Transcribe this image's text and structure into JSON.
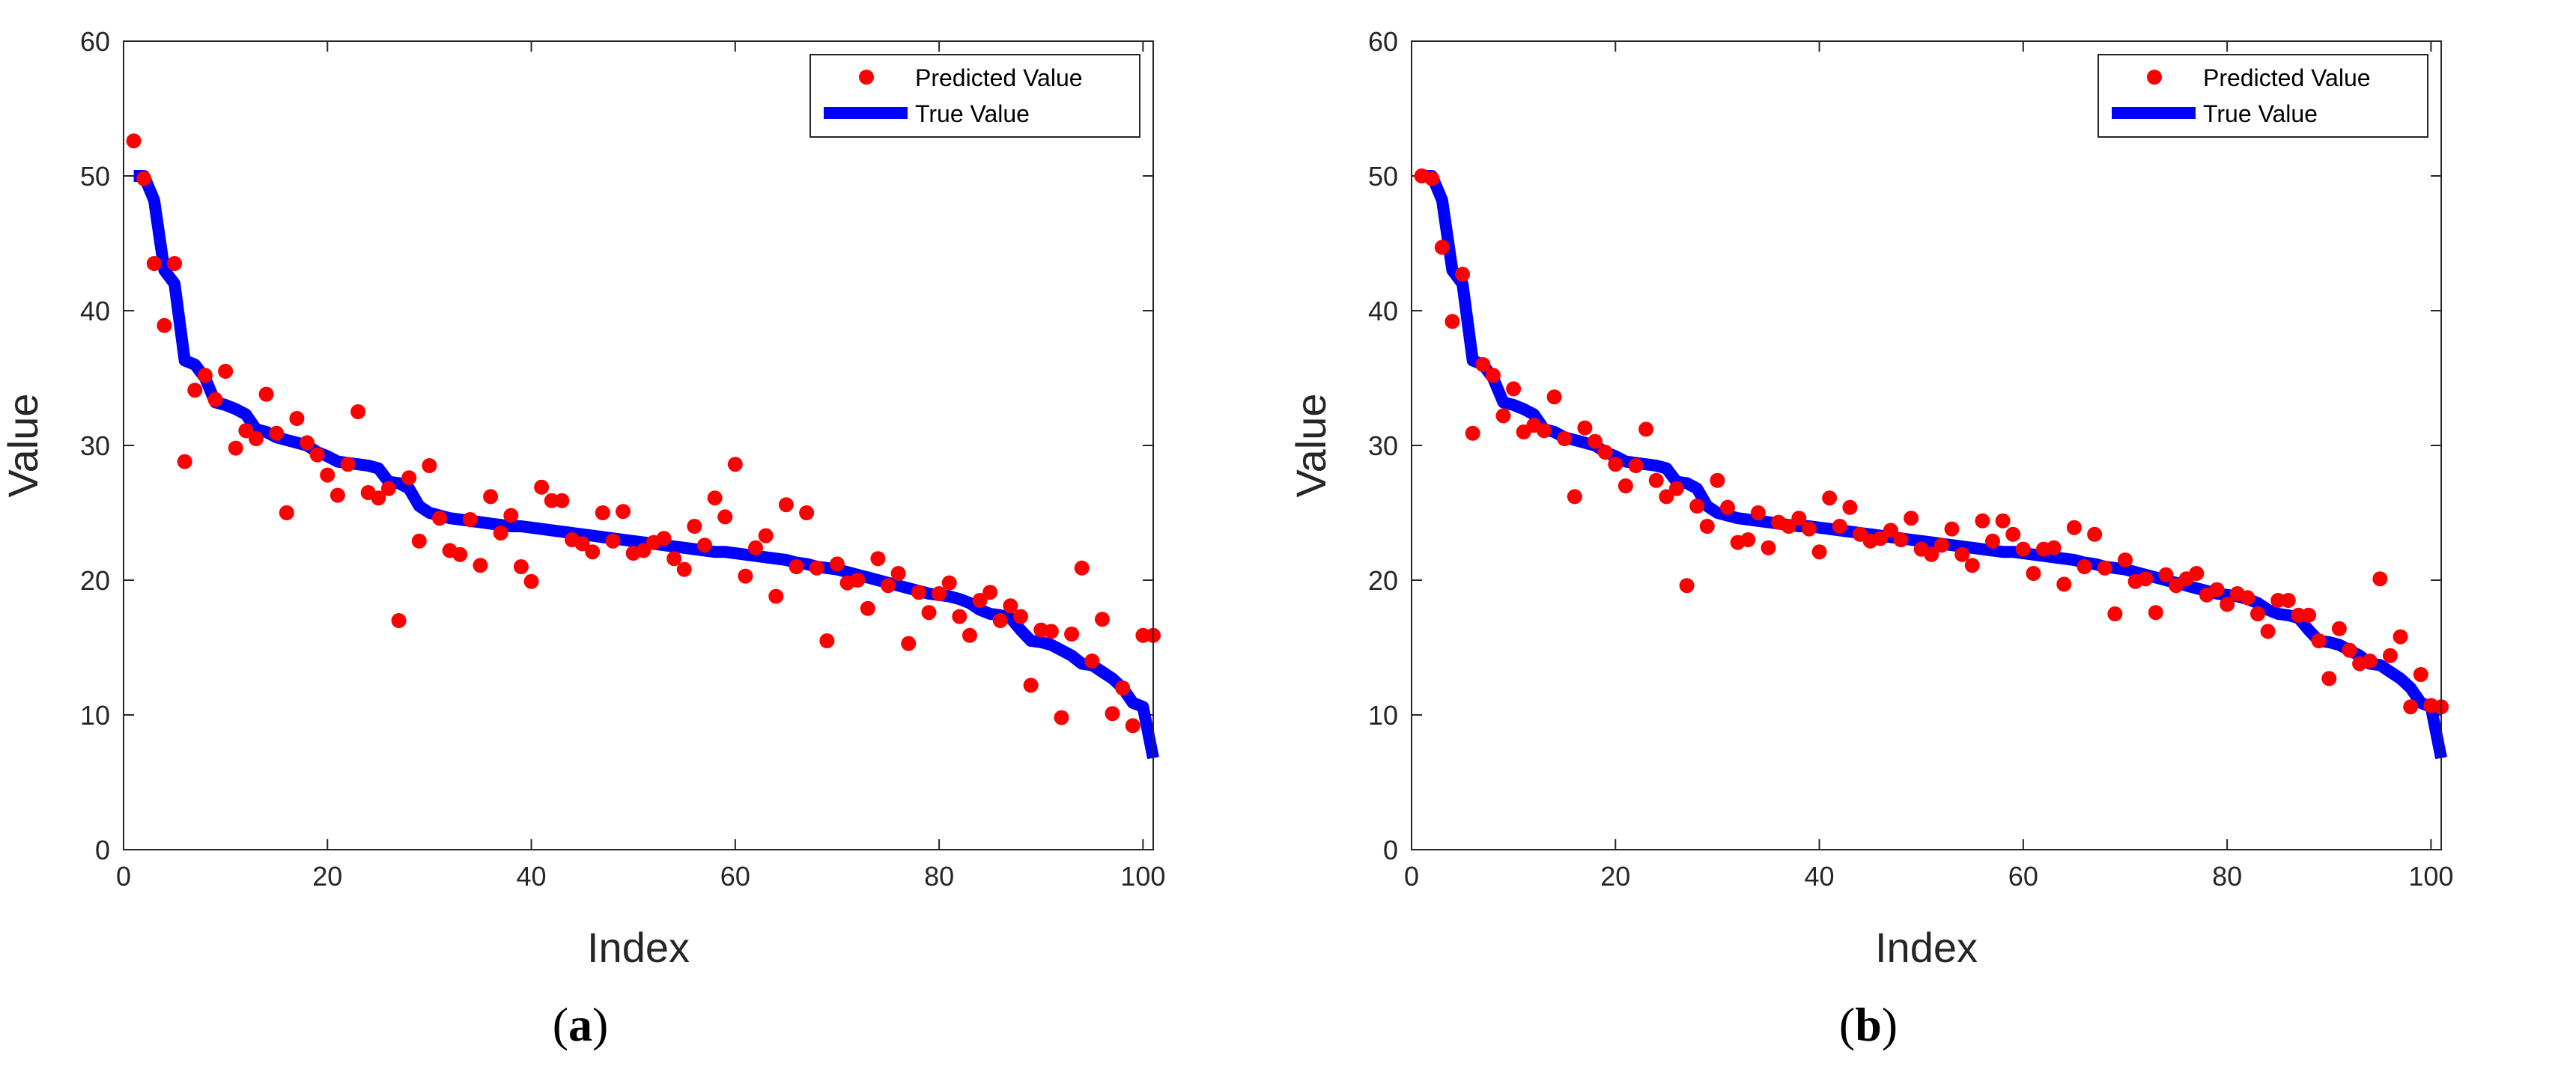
{
  "chart_data": [
    {
      "type": "scatter",
      "panel_caption": {
        "open": "(",
        "letter": "a",
        "close": ")"
      },
      "xlabel": "Index",
      "ylabel": "Value",
      "xlim": [
        0,
        101
      ],
      "ylim": [
        0,
        60
      ],
      "xticks": [
        "0",
        "20",
        "40",
        "60",
        "80",
        "100"
      ],
      "yticks": [
        "0",
        "10",
        "20",
        "30",
        "40",
        "50",
        "60"
      ],
      "legend": {
        "position": "top-right",
        "entries": [
          "Predicted Value",
          "True Value"
        ]
      },
      "colors": {
        "predicted": "#ff0000",
        "true": "#0000ff"
      },
      "series": [
        {
          "name": "Predicted Value",
          "style": "points",
          "x": [
            1,
            2,
            3,
            4,
            5,
            6,
            7,
            8,
            9,
            10,
            11,
            12,
            13,
            14,
            15,
            16,
            17,
            18,
            19,
            20,
            21,
            22,
            23,
            24,
            25,
            26,
            27,
            28,
            29,
            30,
            31,
            32,
            33,
            34,
            35,
            36,
            37,
            38,
            39,
            40,
            41,
            42,
            43,
            44,
            45,
            46,
            47,
            48,
            49,
            50,
            51,
            52,
            53,
            54,
            55,
            56,
            57,
            58,
            59,
            60,
            61,
            62,
            63,
            64,
            65,
            66,
            67,
            68,
            69,
            70,
            71,
            72,
            73,
            74,
            75,
            76,
            77,
            78,
            79,
            80,
            81,
            82,
            83,
            84,
            85,
            86,
            87,
            88,
            89,
            90,
            91,
            92,
            93,
            94,
            95,
            96,
            97,
            98,
            99,
            100,
            101
          ],
          "y": [
            52.6,
            49.8,
            43.5,
            38.9,
            43.5,
            28.8,
            34.1,
            35.2,
            33.4,
            35.5,
            29.8,
            31.1,
            30.5,
            33.8,
            30.9,
            25.0,
            32.0,
            30.2,
            29.3,
            27.8,
            26.3,
            28.6,
            32.5,
            26.5,
            26.1,
            26.8,
            17.0,
            27.6,
            22.9,
            28.5,
            24.6,
            22.2,
            21.9,
            24.5,
            21.1,
            26.2,
            23.5,
            24.8,
            21.0,
            19.9,
            26.9,
            25.9,
            25.9,
            23.0,
            22.7,
            22.1,
            25.0,
            22.9,
            25.1,
            22.0,
            22.2,
            22.8,
            23.1,
            21.6,
            20.8,
            24.0,
            22.6,
            26.1,
            24.7,
            28.6,
            20.3,
            22.4,
            23.3,
            18.8,
            25.6,
            21.0,
            25.0,
            20.9,
            15.5,
            21.2,
            19.8,
            20.0,
            17.9,
            21.6,
            19.6,
            20.5,
            15.3,
            19.1,
            17.6,
            19.0,
            19.8,
            17.3,
            15.9,
            18.5,
            19.1,
            17.0,
            18.1,
            17.3,
            12.2,
            16.3,
            16.2,
            9.8,
            16.0,
            20.9,
            14.0,
            17.1,
            10.1,
            12.0,
            9.2,
            15.9,
            15.9
          ]
        },
        {
          "name": "True Value",
          "style": "line",
          "x": [
            1,
            2,
            3,
            4,
            5,
            6,
            7,
            8,
            9,
            10,
            11,
            12,
            13,
            14,
            15,
            16,
            17,
            18,
            19,
            20,
            21,
            22,
            23,
            24,
            25,
            26,
            27,
            28,
            29,
            30,
            31,
            32,
            33,
            34,
            35,
            36,
            37,
            38,
            39,
            40,
            41,
            42,
            43,
            44,
            45,
            46,
            47,
            48,
            49,
            50,
            51,
            52,
            53,
            54,
            55,
            56,
            57,
            58,
            59,
            60,
            61,
            62,
            63,
            64,
            65,
            66,
            67,
            68,
            69,
            70,
            71,
            72,
            73,
            74,
            75,
            76,
            77,
            78,
            79,
            80,
            81,
            82,
            83,
            84,
            85,
            86,
            87,
            88,
            89,
            90,
            91,
            92,
            93,
            94,
            95,
            96,
            97,
            98,
            99,
            100,
            101
          ],
          "y": [
            50.0,
            50.0,
            48.2,
            43.0,
            42.0,
            36.3,
            36.0,
            35.0,
            33.2,
            33.0,
            32.7,
            32.3,
            31.2,
            31.0,
            30.6,
            30.4,
            30.2,
            30.0,
            29.5,
            29.2,
            28.8,
            28.7,
            28.6,
            28.5,
            28.3,
            27.3,
            27.2,
            26.8,
            25.5,
            25.0,
            24.8,
            24.6,
            24.5,
            24.4,
            24.3,
            24.2,
            24.1,
            24.0,
            24.0,
            23.9,
            23.8,
            23.7,
            23.6,
            23.5,
            23.4,
            23.3,
            23.2,
            23.1,
            23.0,
            22.9,
            22.8,
            22.7,
            22.6,
            22.5,
            22.4,
            22.3,
            22.2,
            22.1,
            22.1,
            22.0,
            21.9,
            21.8,
            21.7,
            21.6,
            21.5,
            21.3,
            21.2,
            21.0,
            20.9,
            20.8,
            20.6,
            20.4,
            20.2,
            20.0,
            19.8,
            19.6,
            19.4,
            19.2,
            19.0,
            18.9,
            18.8,
            18.6,
            18.3,
            17.8,
            17.5,
            17.4,
            17.2,
            16.3,
            15.5,
            15.4,
            15.2,
            14.8,
            14.4,
            13.8,
            13.7,
            13.2,
            12.7,
            12.0,
            10.9,
            10.6,
            6.8
          ]
        }
      ]
    },
    {
      "type": "scatter",
      "panel_caption": {
        "open": "(",
        "letter": "b",
        "close": ")"
      },
      "xlabel": "Index",
      "ylabel": "Value",
      "xlim": [
        0,
        101
      ],
      "ylim": [
        0,
        60
      ],
      "xticks": [
        "0",
        "20",
        "40",
        "60",
        "80",
        "100"
      ],
      "yticks": [
        "0",
        "10",
        "20",
        "30",
        "40",
        "50",
        "60"
      ],
      "legend": {
        "position": "top-right",
        "entries": [
          "Predicted Value",
          "True Value"
        ]
      },
      "colors": {
        "predicted": "#ff0000",
        "true": "#0000ff"
      },
      "series": [
        {
          "name": "Predicted Value",
          "style": "points",
          "x": [
            1,
            2,
            3,
            4,
            5,
            6,
            7,
            8,
            9,
            10,
            11,
            12,
            13,
            14,
            15,
            16,
            17,
            18,
            19,
            20,
            21,
            22,
            23,
            24,
            25,
            26,
            27,
            28,
            29,
            30,
            31,
            32,
            33,
            34,
            35,
            36,
            37,
            38,
            39,
            40,
            41,
            42,
            43,
            44,
            45,
            46,
            47,
            48,
            49,
            50,
            51,
            52,
            53,
            54,
            55,
            56,
            57,
            58,
            59,
            60,
            61,
            62,
            63,
            64,
            65,
            66,
            67,
            68,
            69,
            70,
            71,
            72,
            73,
            74,
            75,
            76,
            77,
            78,
            79,
            80,
            81,
            82,
            83,
            84,
            85,
            86,
            87,
            88,
            89,
            90,
            91,
            92,
            93,
            94,
            95,
            96,
            97,
            98,
            99,
            100,
            101
          ],
          "y": [
            50.0,
            49.8,
            44.7,
            39.2,
            42.7,
            30.9,
            36.0,
            35.2,
            32.2,
            34.2,
            31.0,
            31.5,
            31.1,
            33.6,
            30.5,
            26.2,
            31.3,
            30.3,
            29.5,
            28.6,
            27.0,
            28.5,
            31.2,
            27.4,
            26.2,
            26.8,
            19.6,
            25.5,
            24.0,
            27.4,
            25.4,
            22.8,
            23.0,
            25.0,
            22.4,
            24.3,
            24.0,
            24.6,
            23.8,
            22.1,
            26.1,
            24.0,
            25.4,
            23.4,
            22.9,
            23.1,
            23.7,
            23.0,
            24.6,
            22.3,
            21.9,
            22.6,
            23.8,
            21.9,
            21.1,
            24.4,
            22.9,
            24.4,
            23.4,
            22.3,
            20.5,
            22.3,
            22.4,
            19.7,
            23.9,
            21.0,
            23.4,
            20.9,
            17.5,
            21.5,
            19.9,
            20.1,
            17.6,
            20.4,
            19.6,
            20.1,
            20.5,
            18.9,
            19.3,
            18.2,
            19.0,
            18.7,
            17.5,
            16.2,
            18.5,
            18.5,
            17.4,
            17.4,
            15.5,
            12.7,
            16.4,
            14.8,
            13.8,
            14.0,
            20.1,
            14.4,
            15.8,
            10.6,
            13.0,
            10.7,
            10.6
          ]
        },
        {
          "name": "True Value",
          "style": "line",
          "x": [
            1,
            2,
            3,
            4,
            5,
            6,
            7,
            8,
            9,
            10,
            11,
            12,
            13,
            14,
            15,
            16,
            17,
            18,
            19,
            20,
            21,
            22,
            23,
            24,
            25,
            26,
            27,
            28,
            29,
            30,
            31,
            32,
            33,
            34,
            35,
            36,
            37,
            38,
            39,
            40,
            41,
            42,
            43,
            44,
            45,
            46,
            47,
            48,
            49,
            50,
            51,
            52,
            53,
            54,
            55,
            56,
            57,
            58,
            59,
            60,
            61,
            62,
            63,
            64,
            65,
            66,
            67,
            68,
            69,
            70,
            71,
            72,
            73,
            74,
            75,
            76,
            77,
            78,
            79,
            80,
            81,
            82,
            83,
            84,
            85,
            86,
            87,
            88,
            89,
            90,
            91,
            92,
            93,
            94,
            95,
            96,
            97,
            98,
            99,
            100,
            101
          ],
          "y": [
            50.0,
            50.0,
            48.2,
            43.0,
            42.0,
            36.3,
            36.0,
            35.0,
            33.2,
            33.0,
            32.7,
            32.3,
            31.2,
            31.0,
            30.6,
            30.4,
            30.2,
            30.0,
            29.5,
            29.2,
            28.8,
            28.7,
            28.6,
            28.5,
            28.3,
            27.3,
            27.2,
            26.8,
            25.5,
            25.0,
            24.8,
            24.6,
            24.5,
            24.4,
            24.3,
            24.2,
            24.1,
            24.0,
            24.0,
            23.9,
            23.8,
            23.7,
            23.6,
            23.5,
            23.4,
            23.3,
            23.2,
            23.1,
            23.0,
            22.9,
            22.8,
            22.7,
            22.6,
            22.5,
            22.4,
            22.3,
            22.2,
            22.1,
            22.1,
            22.0,
            21.9,
            21.8,
            21.7,
            21.6,
            21.5,
            21.3,
            21.2,
            21.0,
            20.9,
            20.8,
            20.6,
            20.4,
            20.2,
            20.0,
            19.8,
            19.6,
            19.4,
            19.2,
            19.0,
            18.9,
            18.8,
            18.6,
            18.3,
            17.8,
            17.5,
            17.4,
            17.2,
            16.3,
            15.5,
            15.4,
            15.2,
            14.8,
            14.4,
            13.8,
            13.7,
            13.2,
            12.7,
            12.0,
            10.9,
            10.6,
            6.8
          ]
        }
      ]
    }
  ]
}
